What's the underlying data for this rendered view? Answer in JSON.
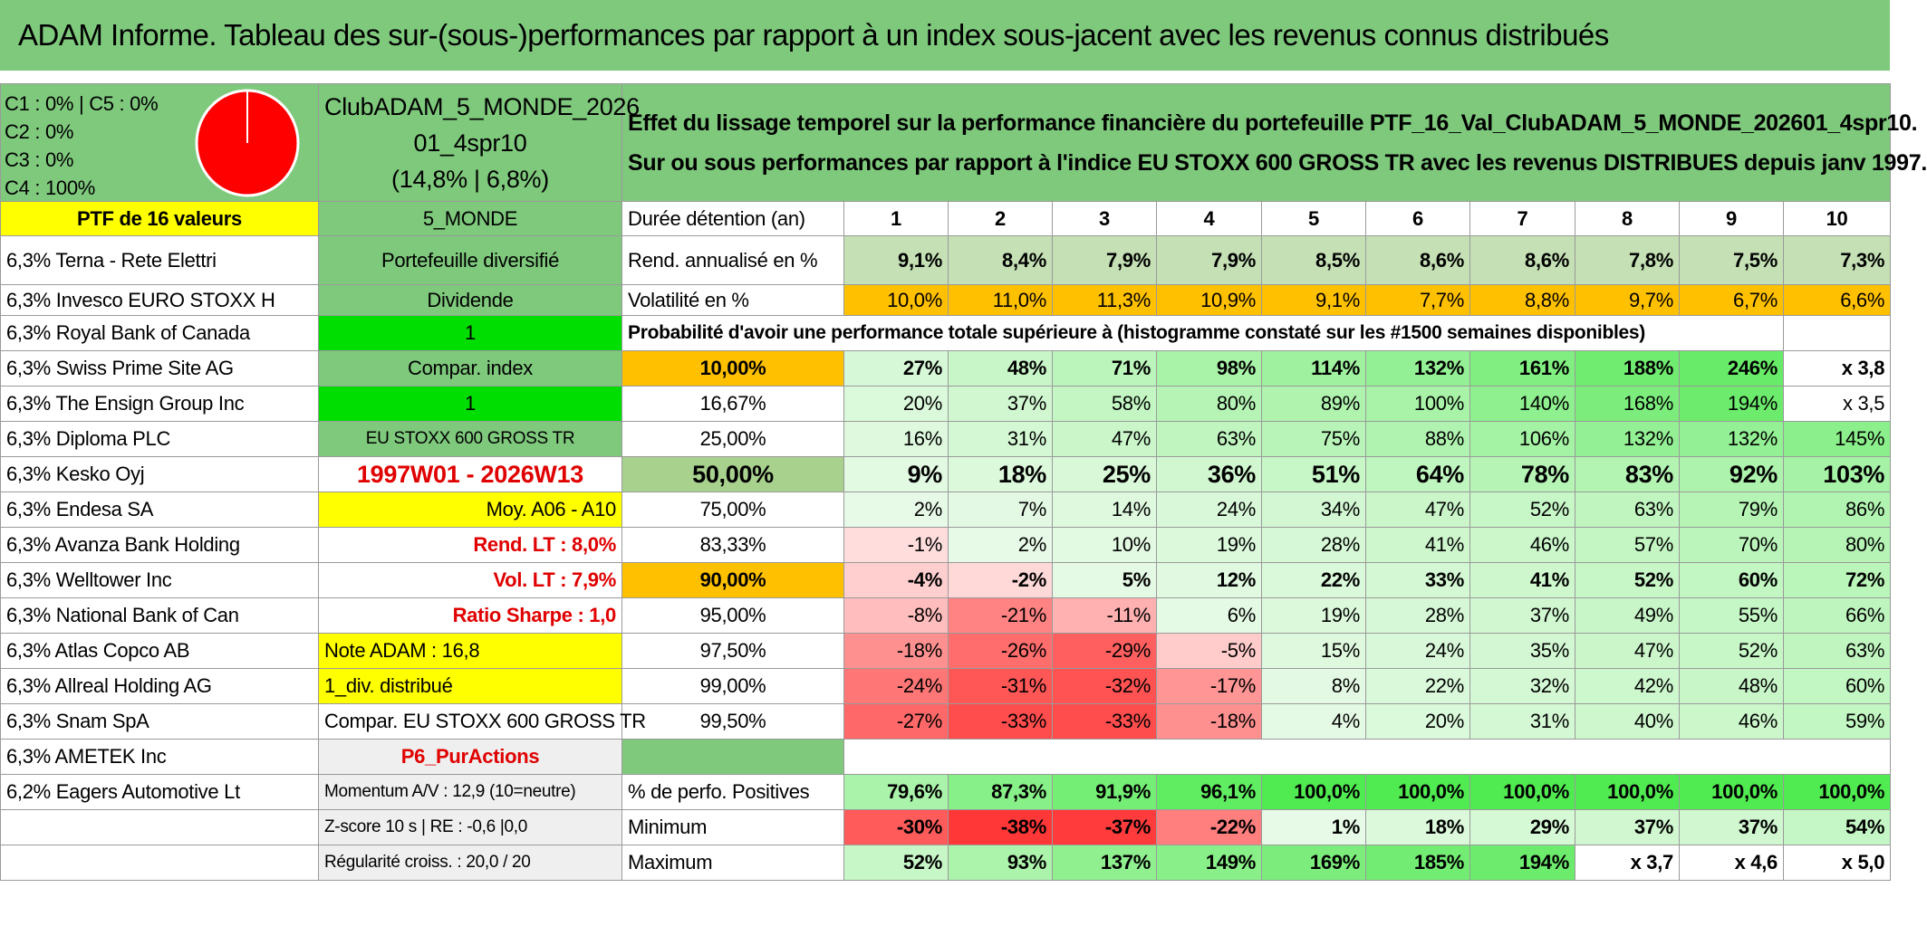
{
  "title": "ADAM Informe. Tableau des sur-(sous-)performances par rapport à un index sous-jacent avec les revenus connus distribués",
  "top": {
    "classes": [
      "C1 : 0% | C5 : 0%",
      "C2 : 0%",
      "C3 : 0%",
      "C4 : 100%"
    ],
    "pie_color": "#ff0000",
    "fund_line1": "ClubADAM_5_MONDE_2026",
    "fund_line2": "01_4spr10",
    "fund_line3": "(14,8% | 6,8%)",
    "desc_line1": "Effet du lissage temporel sur la performance financière du portefeuille PTF_16_Val_ClubADAM_5_MONDE_202601_4spr10.",
    "desc_line2": "Sur ou sous performances par rapport à l'indice EU STOXX 600 GROSS TR avec les revenus DISTRIBUES depuis janv 1997."
  },
  "ptf_label": "PTF de 16 valeurs",
  "holdings": [
    "6,3% Terna - Rete Elettri",
    "6,3% Invesco EURO STOXX H",
    "6,3% Royal Bank of Canada",
    "6,3% Swiss Prime Site AG",
    "6,3% The Ensign Group Inc",
    "6,3% Diploma PLC",
    "6,3% Kesko Oyj",
    "6,3% Endesa SA",
    "6,3% Avanza Bank Holding",
    "6,3% Welltower Inc",
    "6,3% National Bank of Can",
    "6,3% Atlas Copco AB",
    "6,3% Allreal Holding AG",
    "6,3% Snam SpA",
    "6,3% AMETEK Inc",
    "6,2% Eagers Automotive Lt",
    "",
    ""
  ],
  "middle": [
    "5_MONDE",
    "Portefeuille diversifié",
    "Dividende",
    "1",
    "Compar. index",
    "1",
    "EU STOXX 600 GROSS TR",
    "1997W01 - 2026W13",
    "Moy. A06 - A10",
    "Rend. LT : 8,0%",
    "Vol. LT : 7,9%",
    "Ratio Sharpe : 1,0",
    "Note ADAM : 16,8",
    "1_div. distribué",
    "Compar. EU STOXX 600 GROSS TR",
    "P6_PurActions",
    "Momentum A/V : 12,9 (10=neutre)",
    "Z-score 10 s | RE : -0,6 |0,0",
    "Régularité croiss. : 20,0 / 20"
  ],
  "stats": {
    "duration_label": "Durée détention (an)",
    "years": [
      "1",
      "2",
      "3",
      "4",
      "5",
      "6",
      "7",
      "8",
      "9",
      "10"
    ],
    "rend_label": "Rend. annualisé en %",
    "rend": [
      "9,1%",
      "8,4%",
      "7,9%",
      "7,9%",
      "8,5%",
      "8,6%",
      "8,6%",
      "7,8%",
      "7,5%",
      "7,3%"
    ],
    "vol_label": "Volatilité en %",
    "vol": [
      "10,0%",
      "11,0%",
      "11,3%",
      "10,9%",
      "9,1%",
      "7,7%",
      "8,8%",
      "9,7%",
      "6,7%",
      "6,6%"
    ],
    "prob_title": "Probabilité d'avoir une performance totale supérieure à (histogramme constaté sur les #1500 semaines disponibles)",
    "quantiles": [
      {
        "p": "10,00%",
        "v": [
          "27%",
          "48%",
          "71%",
          "98%",
          "114%",
          "132%",
          "161%",
          "188%",
          "246%",
          "x 3,8"
        ]
      },
      {
        "p": "16,67%",
        "v": [
          "20%",
          "37%",
          "58%",
          "80%",
          "89%",
          "100%",
          "140%",
          "168%",
          "194%",
          "x 3,5"
        ]
      },
      {
        "p": "25,00%",
        "v": [
          "16%",
          "31%",
          "47%",
          "63%",
          "75%",
          "88%",
          "106%",
          "132%",
          "132%",
          "145%"
        ]
      },
      {
        "p": "50,00%",
        "v": [
          "9%",
          "18%",
          "25%",
          "36%",
          "51%",
          "64%",
          "78%",
          "83%",
          "92%",
          "103%"
        ]
      },
      {
        "p": "75,00%",
        "v": [
          "2%",
          "7%",
          "14%",
          "24%",
          "34%",
          "47%",
          "52%",
          "63%",
          "79%",
          "86%"
        ]
      },
      {
        "p": "83,33%",
        "v": [
          "-1%",
          "2%",
          "10%",
          "19%",
          "28%",
          "41%",
          "46%",
          "57%",
          "70%",
          "80%"
        ]
      },
      {
        "p": "90,00%",
        "v": [
          "-4%",
          "-2%",
          "5%",
          "12%",
          "22%",
          "33%",
          "41%",
          "52%",
          "60%",
          "72%"
        ]
      },
      {
        "p": "95,00%",
        "v": [
          "-8%",
          "-21%",
          "-11%",
          "6%",
          "19%",
          "28%",
          "37%",
          "49%",
          "55%",
          "66%"
        ]
      },
      {
        "p": "97,50%",
        "v": [
          "-18%",
          "-26%",
          "-29%",
          "-5%",
          "15%",
          "24%",
          "35%",
          "47%",
          "52%",
          "63%"
        ]
      },
      {
        "p": "99,00%",
        "v": [
          "-24%",
          "-31%",
          "-32%",
          "-17%",
          "8%",
          "22%",
          "32%",
          "42%",
          "48%",
          "60%"
        ]
      },
      {
        "p": "99,50%",
        "v": [
          "-27%",
          "-33%",
          "-33%",
          "-18%",
          "4%",
          "20%",
          "31%",
          "40%",
          "46%",
          "59%"
        ]
      }
    ],
    "pos_label": "% de perfo. Positives",
    "pos": [
      "79,6%",
      "87,3%",
      "91,9%",
      "96,1%",
      "100,0%",
      "100,0%",
      "100,0%",
      "100,0%",
      "100,0%",
      "100,0%"
    ],
    "min_label": "Minimum",
    "min": [
      "-30%",
      "-38%",
      "-37%",
      "-22%",
      "1%",
      "18%",
      "29%",
      "37%",
      "37%",
      "54%"
    ],
    "max_label": "Maximum",
    "max": [
      "52%",
      "93%",
      "137%",
      "149%",
      "169%",
      "185%",
      "194%",
      "x 3,7",
      "x 4,6",
      "x 5,0"
    ]
  }
}
